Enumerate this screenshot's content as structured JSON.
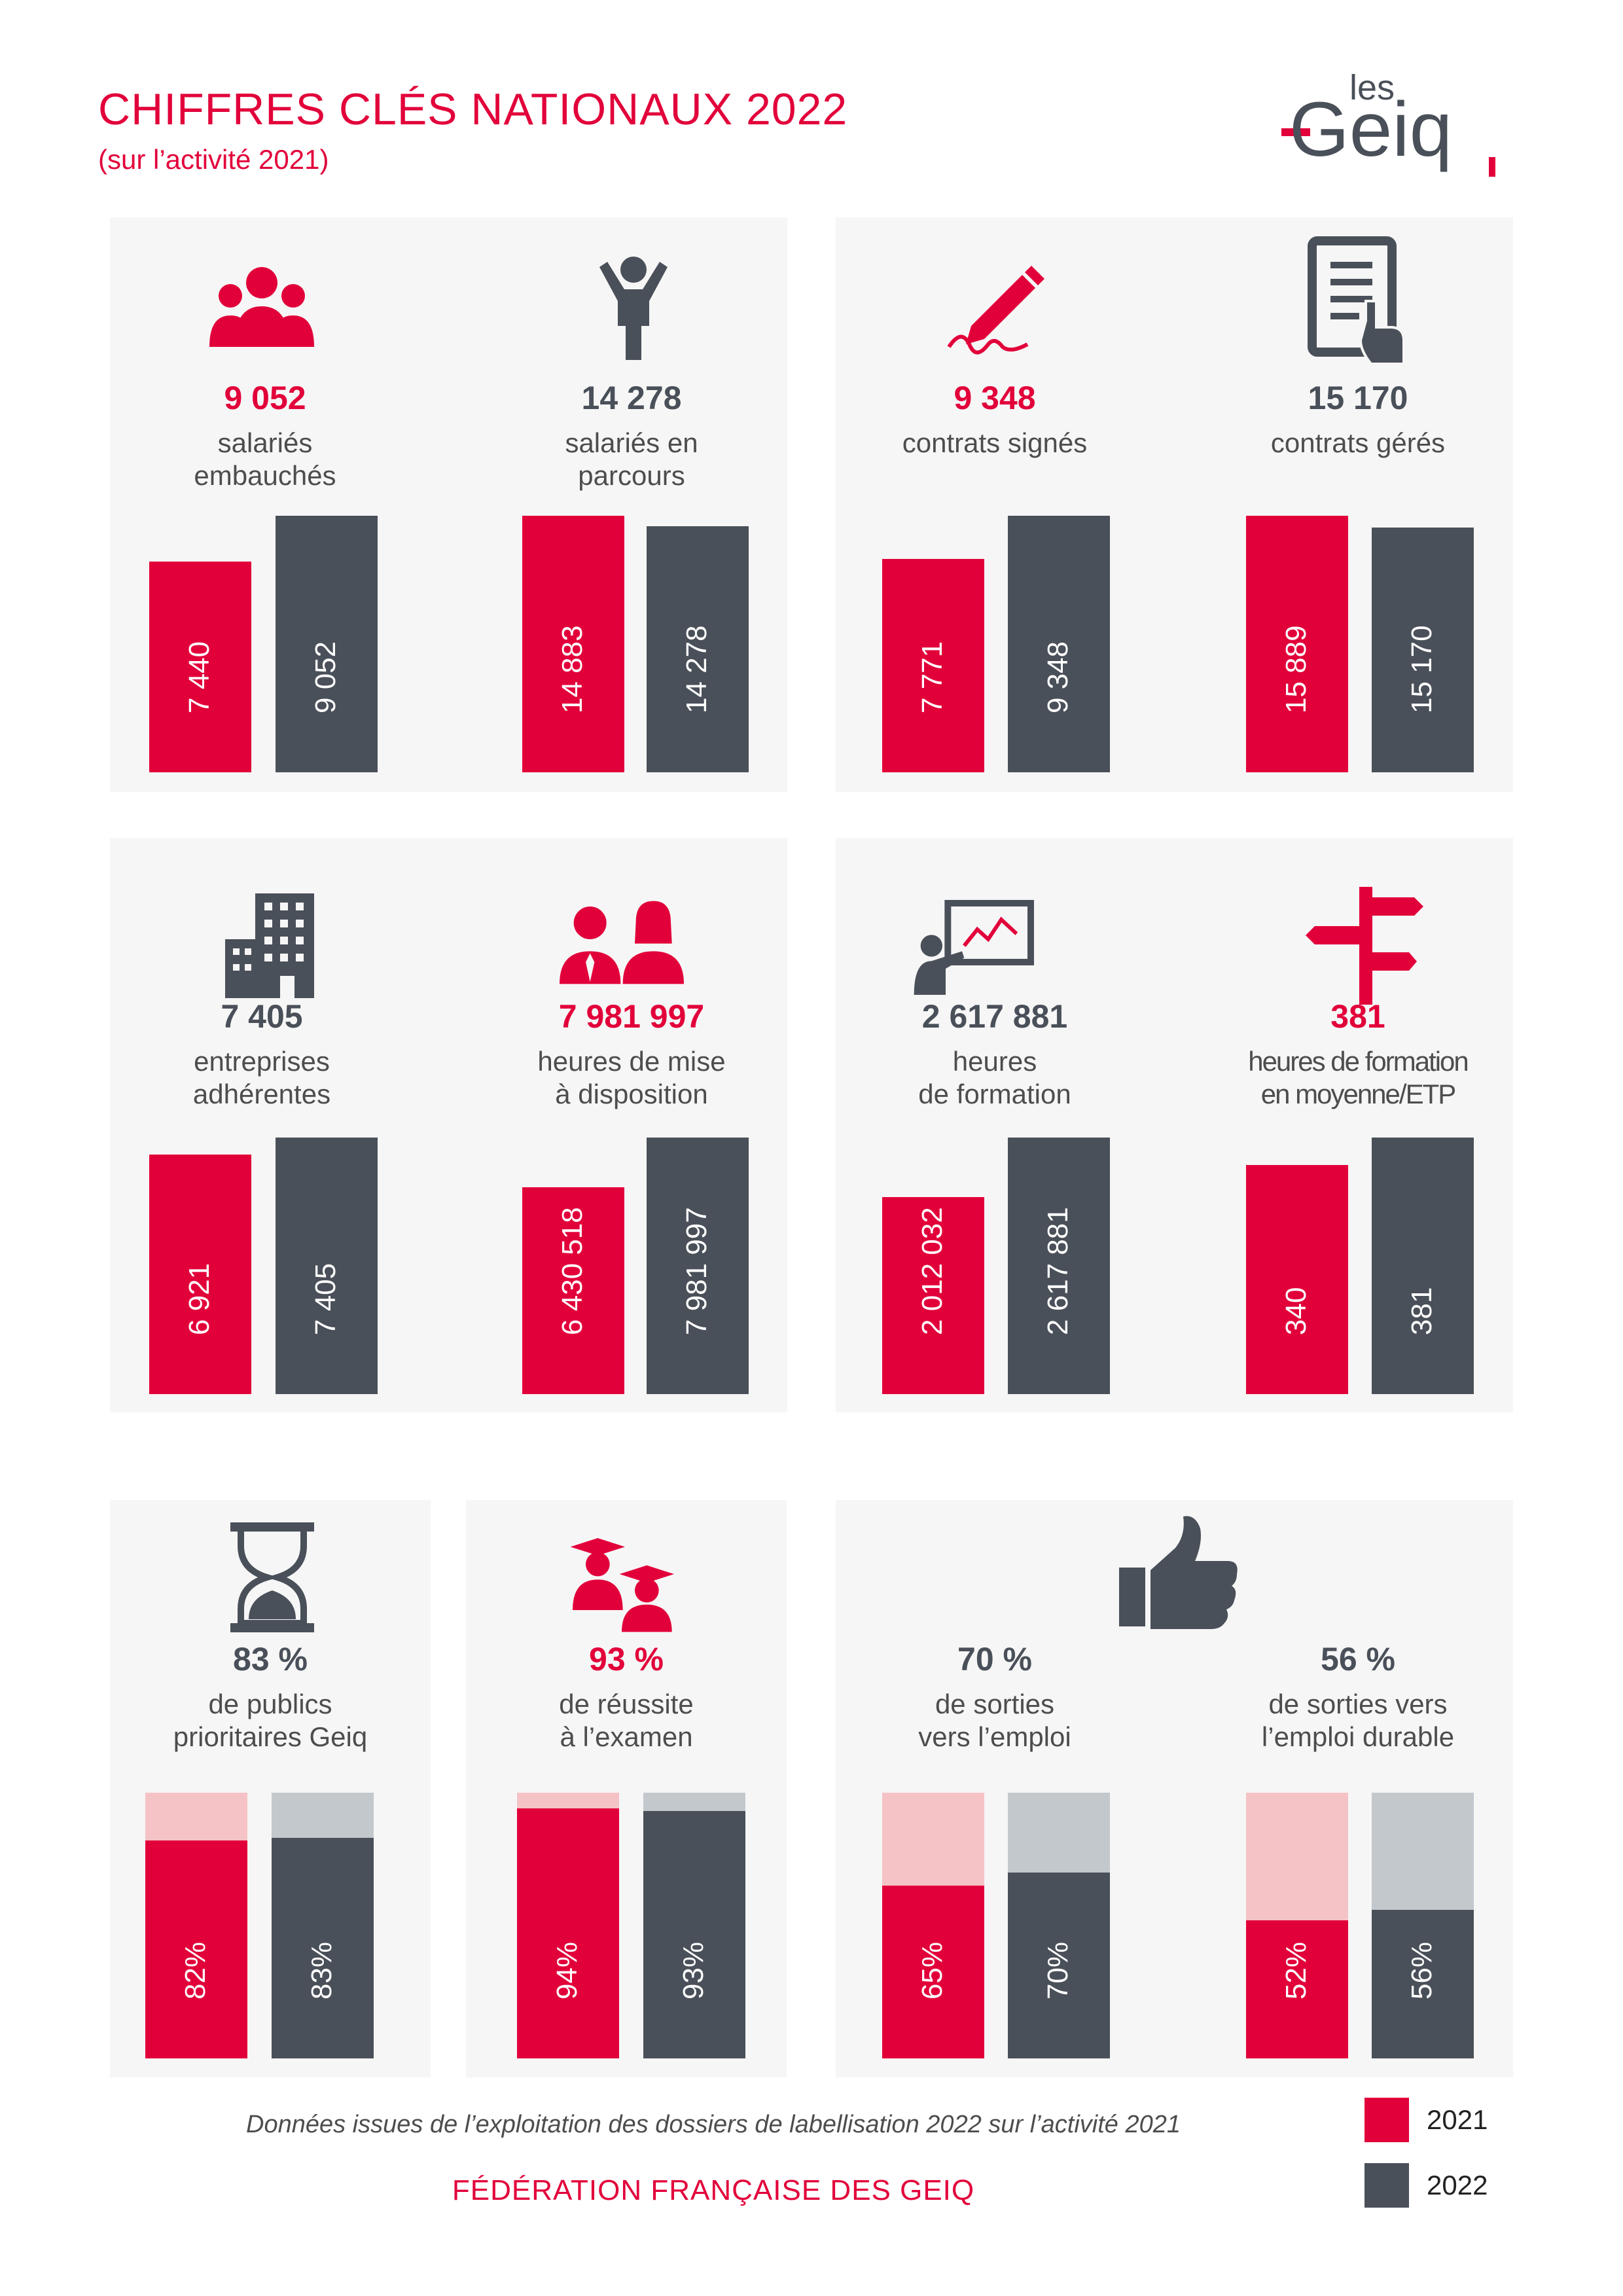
{
  "header": {
    "title": "CHIFFRES CLÉS NATIONAUX 2022",
    "subtitle": "(sur l’activité 2021)",
    "logo_small": "les",
    "logo_big": "Geiq"
  },
  "colors": {
    "red": "#e2003a",
    "gray": "#4a5059",
    "light_red": "#f5c3c5",
    "light_gray": "#c3c8cd",
    "panel": "#f6f6f6"
  },
  "legend": [
    {
      "label": "2021",
      "color": "#e2003a"
    },
    {
      "label": "2022",
      "color": "#4a5059"
    }
  ],
  "footer": {
    "note": "Données issues de l’exploitation des dossiers de labellisation 2022 sur l’activité 2021",
    "federation": "FÉDÉRATION FRANÇAISE DES GEIQ"
  },
  "chart_data": [
    {
      "type": "bar",
      "icon": "people-group-icon",
      "title": "9 052",
      "label": [
        "salariés",
        "embauchés"
      ],
      "title_color": "red",
      "categories": [
        "2021",
        "2022"
      ],
      "values": [
        7440,
        9052
      ],
      "value_labels": [
        "7 440",
        "9 052"
      ]
    },
    {
      "type": "bar",
      "icon": "person-arms-up-icon",
      "title": "14 278",
      "label": [
        "salariés en",
        "parcours"
      ],
      "title_color": "gray",
      "categories": [
        "2021",
        "2022"
      ],
      "values": [
        14883,
        14278
      ],
      "value_labels": [
        "14 883",
        "14 278"
      ]
    },
    {
      "type": "bar",
      "icon": "pencil-signature-icon",
      "title": "9 348",
      "label": [
        "contrats signés"
      ],
      "title_color": "red",
      "categories": [
        "2021",
        "2022"
      ],
      "values": [
        7771,
        9348
      ],
      "value_labels": [
        "7 771",
        "9 348"
      ]
    },
    {
      "type": "bar",
      "icon": "document-hand-icon",
      "title": "15 170",
      "label": [
        "contrats gérés"
      ],
      "title_color": "gray",
      "categories": [
        "2021",
        "2022"
      ],
      "values": [
        15889,
        15170
      ],
      "value_labels": [
        "15 889",
        "15 170"
      ]
    },
    {
      "type": "bar",
      "icon": "building-icon",
      "title": "7 405",
      "label": [
        "entreprises",
        "adhérentes"
      ],
      "title_color": "gray",
      "categories": [
        "2021",
        "2022"
      ],
      "values": [
        6921,
        7405
      ],
      "value_labels": [
        "6 921",
        "7 405"
      ]
    },
    {
      "type": "bar",
      "icon": "man-woman-icon",
      "title": "7 981 997",
      "label": [
        "heures de mise",
        "à disposition"
      ],
      "title_color": "red",
      "categories": [
        "2021",
        "2022"
      ],
      "values": [
        6430518,
        7981997
      ],
      "value_labels": [
        "6 430 518",
        "7 981 997"
      ]
    },
    {
      "type": "bar",
      "icon": "presentation-board-icon",
      "title": "2 617 881",
      "label": [
        "heures",
        "de formation"
      ],
      "title_color": "gray",
      "categories": [
        "2021",
        "2022"
      ],
      "values": [
        2012032,
        2617881
      ],
      "value_labels": [
        "2 012 032",
        "2 617 881"
      ]
    },
    {
      "type": "bar",
      "icon": "signpost-icon",
      "title": "381",
      "label": [
        "heures de formation",
        "en moyenne/ETP"
      ],
      "title_color": "red",
      "categories": [
        "2021",
        "2022"
      ],
      "values": [
        340,
        381
      ],
      "value_labels": [
        "340",
        "381"
      ]
    },
    {
      "type": "bar",
      "icon": "hourglass-icon",
      "title": "83 %",
      "label": [
        "de publics",
        "prioritaires Geiq"
      ],
      "title_color": "gray",
      "categories": [
        "2021",
        "2022"
      ],
      "values": [
        82,
        83
      ],
      "value_labels": [
        "82%",
        "83%"
      ],
      "ylim": [
        0,
        100
      ]
    },
    {
      "type": "bar",
      "icon": "graduates-icon",
      "title": "93 %",
      "label": [
        "de réussite",
        "à l’examen"
      ],
      "title_color": "red",
      "categories": [
        "2021",
        "2022"
      ],
      "values": [
        94,
        93
      ],
      "value_labels": [
        "94%",
        "93%"
      ],
      "ylim": [
        0,
        100
      ]
    },
    {
      "type": "bar",
      "icon": "thumbs-up-icon",
      "title": "70 %",
      "label": [
        "de sorties",
        "vers l’emploi"
      ],
      "title_color": "gray",
      "categories": [
        "2021",
        "2022"
      ],
      "values": [
        65,
        70
      ],
      "value_labels": [
        "65%",
        "70%"
      ],
      "ylim": [
        0,
        100
      ]
    },
    {
      "type": "bar",
      "icon": "thumbs-up-icon",
      "title": "56 %",
      "label": [
        "de sorties vers",
        "l’emploi durable"
      ],
      "title_color": "gray",
      "categories": [
        "2021",
        "2022"
      ],
      "values": [
        52,
        56
      ],
      "value_labels": [
        "52%",
        "56%"
      ],
      "ylim": [
        0,
        100
      ]
    }
  ]
}
